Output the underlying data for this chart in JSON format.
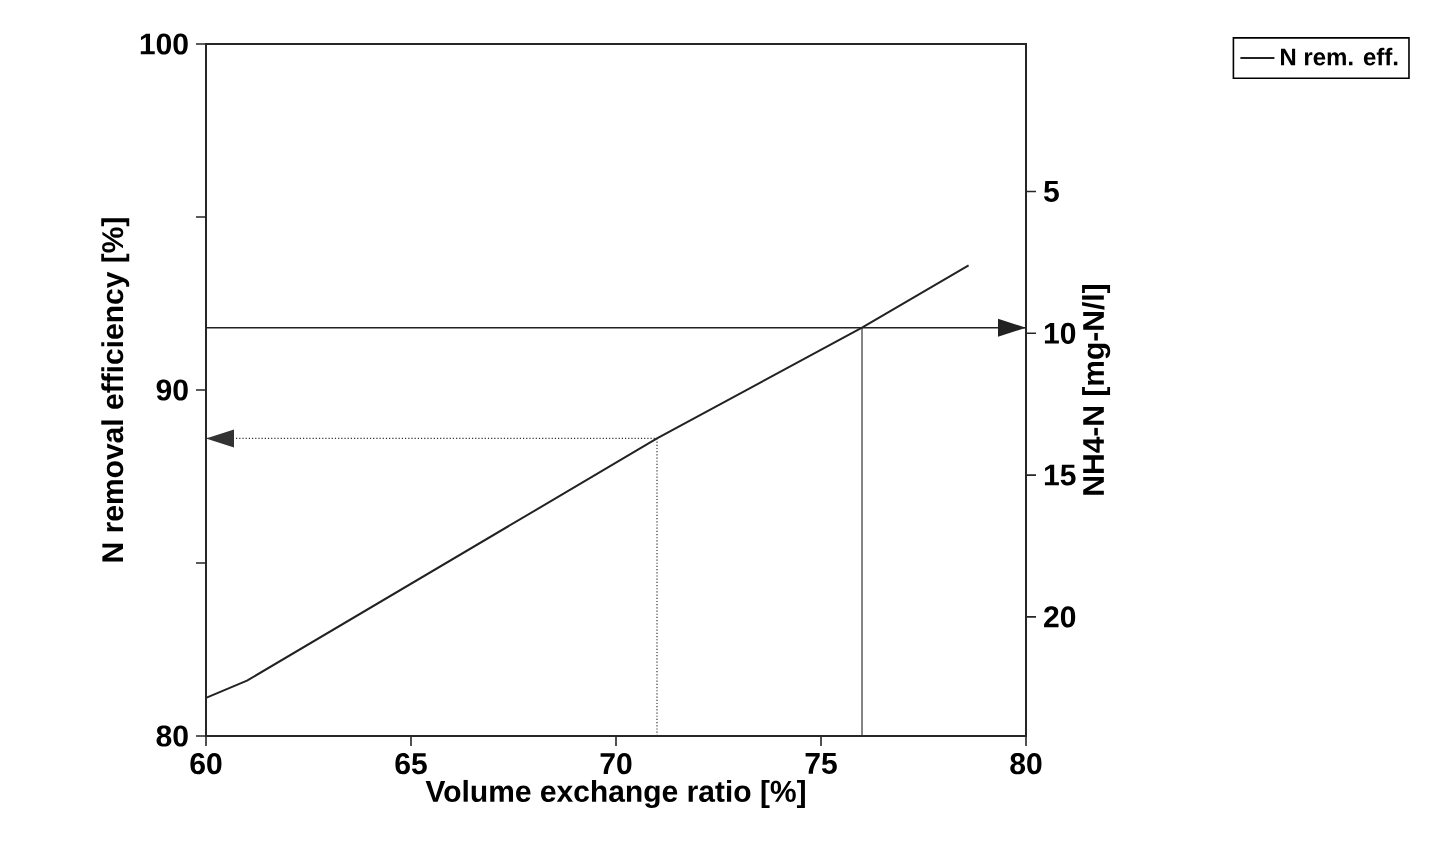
{
  "chart_data": {
    "type": "line",
    "xlabel": "Volume exchange ratio [%]",
    "ylabel": "N removal efficiency [%]",
    "y2label": "NH4-N [mg-N/l]",
    "xlim": [
      60,
      80
    ],
    "xticks": [
      60,
      65,
      70,
      75,
      80
    ],
    "ylim": [
      80,
      100
    ],
    "yticks": [
      80,
      {
        "value": 85,
        "label": null
      },
      90,
      {
        "value": 95,
        "label": null
      },
      100
    ],
    "y2lim": [
      24.2,
      -0.2
    ],
    "y2ticks": [
      5,
      10,
      15,
      20
    ],
    "legend": "top right",
    "series": [
      {
        "name": "N rem. eff.",
        "color": "#222222",
        "x": [
          60,
          61,
          71,
          76,
          78.6
        ],
        "values": [
          81.1,
          81.6,
          88.6,
          91.8,
          93.6
        ]
      },
      {
        "color": "#333333",
        "line_style": "dotted",
        "x": [
          71,
          71,
          60
        ],
        "values": [
          80,
          88.6,
          88.6
        ]
      },
      {
        "color": "#333333",
        "line_style": "solid",
        "x": [
          76,
          76
        ],
        "values": [
          80,
          91.8
        ]
      }
    ],
    "ref_lines": [
      {
        "axis": "y",
        "value": 91.8,
        "color": "#222222"
      }
    ]
  }
}
